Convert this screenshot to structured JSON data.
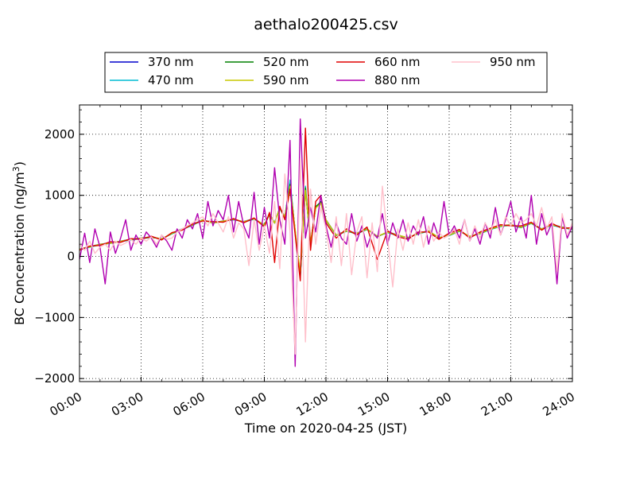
{
  "chart_data": {
    "type": "line",
    "title": "aethalo200425.csv",
    "xlabel": "Time on 2020-04-25 (JST)",
    "ylabel_main": "BC Concentration (ng/m",
    "ylabel_sup": "3",
    "ylabel_tail": ")",
    "x_unit": "hours of day (JST)",
    "xlim": [
      0,
      24
    ],
    "ylim": [
      -2050,
      2480
    ],
    "grid": true,
    "legend_position": "top-center (above plot)",
    "x_ticks": [
      {
        "value": 0,
        "label": "00:00"
      },
      {
        "value": 3,
        "label": "03:00"
      },
      {
        "value": 6,
        "label": "06:00"
      },
      {
        "value": 9,
        "label": "09:00"
      },
      {
        "value": 12,
        "label": "12:00"
      },
      {
        "value": 15,
        "label": "15:00"
      },
      {
        "value": 18,
        "label": "18:00"
      },
      {
        "value": 21,
        "label": "21:00"
      },
      {
        "value": 24,
        "label": "24:00"
      }
    ],
    "y_ticks": [
      {
        "value": 2000,
        "label": "2000"
      },
      {
        "value": 1000,
        "label": "1000"
      },
      {
        "value": 0,
        "label": "0"
      },
      {
        "value": -1000,
        "label": "−1000"
      },
      {
        "value": -2000,
        "label": "−2000"
      }
    ],
    "series": [
      {
        "name": "370 nm",
        "color": "#0000cc",
        "x": [
          0,
          0.5,
          1,
          1.5,
          2,
          2.5,
          3,
          3.5,
          4,
          4.5,
          5,
          5.5,
          6,
          6.5,
          7,
          7.5,
          8,
          8.5,
          9,
          9.25,
          9.5,
          9.75,
          10,
          10.25,
          10.5,
          10.75,
          11,
          11.25,
          11.5,
          11.75,
          12,
          12.5,
          13,
          13.5,
          14,
          14.5,
          15,
          15.5,
          16,
          16.5,
          17,
          17.5,
          18,
          18.5,
          19,
          19.5,
          20,
          20.5,
          21,
          21.5,
          22,
          22.5,
          23,
          23.5,
          24
        ],
        "values": [
          120,
          160,
          200,
          220,
          250,
          280,
          300,
          320,
          280,
          380,
          450,
          520,
          600,
          550,
          580,
          600,
          570,
          620,
          500,
          700,
          550,
          800,
          650,
          1200,
          400,
          -300,
          1100,
          200,
          800,
          900,
          600,
          350,
          420,
          380,
          450,
          320,
          400,
          350,
          300,
          380,
          420,
          300,
          350,
          420,
          320,
          380,
          450,
          500,
          520,
          480,
          550,
          450,
          520,
          480,
          450
        ]
      },
      {
        "name": "470 nm",
        "color": "#00bcd4",
        "x": [
          0,
          0.5,
          1,
          1.5,
          2,
          2.5,
          3,
          3.5,
          4,
          4.5,
          5,
          5.5,
          6,
          6.5,
          7,
          7.5,
          8,
          8.5,
          9,
          9.25,
          9.5,
          9.75,
          10,
          10.25,
          10.5,
          10.75,
          11,
          11.25,
          11.5,
          11.75,
          12,
          12.5,
          13,
          13.5,
          14,
          14.5,
          15,
          15.5,
          16,
          16.5,
          17,
          17.5,
          18,
          18.5,
          19,
          19.5,
          20,
          20.5,
          21,
          21.5,
          22,
          22.5,
          23,
          23.5,
          24
        ],
        "values": [
          110,
          150,
          190,
          230,
          240,
          270,
          290,
          310,
          290,
          370,
          440,
          510,
          590,
          560,
          570,
          610,
          560,
          610,
          520,
          680,
          560,
          780,
          640,
          1250,
          380,
          -350,
          1150,
          180,
          820,
          880,
          590,
          340,
          410,
          370,
          440,
          330,
          390,
          340,
          310,
          370,
          410,
          310,
          340,
          410,
          330,
          370,
          440,
          490,
          510,
          470,
          540,
          440,
          510,
          470,
          440
        ]
      },
      {
        "name": "520 nm",
        "color": "#008000",
        "x": [
          0,
          0.5,
          1,
          1.5,
          2,
          2.5,
          3,
          3.5,
          4,
          4.5,
          5,
          5.5,
          6,
          6.5,
          7,
          7.5,
          8,
          8.5,
          9,
          9.25,
          9.5,
          9.75,
          10,
          10.25,
          10.5,
          10.75,
          11,
          11.25,
          11.5,
          11.75,
          12,
          12.5,
          13,
          13.5,
          14,
          14.5,
          15,
          15.5,
          16,
          16.5,
          17,
          17.5,
          18,
          18.5,
          19,
          19.5,
          20,
          20.5,
          21,
          21.5,
          22,
          22.5,
          23,
          23.5,
          24
        ],
        "values": [
          115,
          155,
          195,
          215,
          245,
          275,
          295,
          315,
          285,
          375,
          445,
          515,
          595,
          545,
          575,
          605,
          565,
          615,
          510,
          690,
          545,
          790,
          645,
          1180,
          420,
          -320,
          1120,
          210,
          810,
          890,
          595,
          345,
          415,
          375,
          445,
          325,
          395,
          345,
          305,
          375,
          415,
          305,
          345,
          415,
          325,
          375,
          445,
          495,
          515,
          475,
          545,
          445,
          515,
          475,
          445
        ]
      },
      {
        "name": "590 nm",
        "color": "#c8c800",
        "x": [
          0,
          0.5,
          1,
          1.5,
          2,
          2.5,
          3,
          3.5,
          4,
          4.5,
          5,
          5.5,
          6,
          6.5,
          7,
          7.5,
          8,
          8.5,
          9,
          9.25,
          9.5,
          9.75,
          10,
          10.25,
          10.5,
          10.75,
          11,
          11.25,
          11.5,
          11.75,
          12,
          12.5,
          13,
          13.5,
          14,
          14.5,
          15,
          15.5,
          16,
          16.5,
          17,
          17.5,
          18,
          18.5,
          19,
          19.5,
          20,
          20.5,
          21,
          21.5,
          22,
          22.5,
          23,
          23.5,
          24
        ],
        "values": [
          118,
          158,
          198,
          218,
          248,
          278,
          298,
          318,
          288,
          378,
          448,
          518,
          598,
          548,
          578,
          608,
          568,
          618,
          515,
          695,
          548,
          795,
          648,
          1150,
          430,
          -280,
          1080,
          230,
          790,
          870,
          598,
          348,
          418,
          378,
          448,
          328,
          398,
          348,
          308,
          378,
          418,
          308,
          348,
          418,
          328,
          378,
          448,
          498,
          518,
          478,
          548,
          448,
          518,
          478,
          448
        ]
      },
      {
        "name": "660 nm",
        "color": "#e00000",
        "x": [
          0,
          0.5,
          1,
          1.5,
          2,
          2.5,
          3,
          3.5,
          4,
          4.5,
          5,
          5.5,
          6,
          6.5,
          7,
          7.5,
          8,
          8.5,
          9,
          9.25,
          9.5,
          9.75,
          10,
          10.25,
          10.5,
          10.75,
          11,
          11.25,
          11.5,
          11.75,
          12,
          12.5,
          13,
          13.5,
          14,
          14.5,
          15,
          15.5,
          16,
          16.5,
          17,
          17.5,
          18,
          18.5,
          19,
          19.5,
          20,
          20.5,
          21,
          21.5,
          22,
          22.5,
          23,
          23.5,
          24
        ],
        "values": [
          100,
          170,
          180,
          240,
          230,
          290,
          280,
          330,
          270,
          390,
          430,
          530,
          580,
          570,
          560,
          620,
          550,
          630,
          480,
          720,
          -100,
          820,
          600,
          1100,
          350,
          -400,
          2100,
          100,
          900,
          1000,
          550,
          300,
          450,
          350,
          480,
          -50,
          420,
          320,
          280,
          400,
          400,
          280,
          380,
          440,
          300,
          400,
          460,
          520,
          500,
          500,
          560,
          430,
          540,
          460,
          470
        ]
      },
      {
        "name": "880 nm",
        "color": "#b000b0",
        "x": [
          0,
          0.25,
          0.5,
          0.75,
          1,
          1.25,
          1.5,
          1.75,
          2,
          2.25,
          2.5,
          2.75,
          3,
          3.25,
          3.5,
          3.75,
          4,
          4.25,
          4.5,
          4.75,
          5,
          5.25,
          5.5,
          5.75,
          6,
          6.25,
          6.5,
          6.75,
          7,
          7.25,
          7.5,
          7.75,
          8,
          8.25,
          8.5,
          8.75,
          9,
          9.25,
          9.5,
          9.75,
          10,
          10.25,
          10.5,
          10.75,
          11,
          11.25,
          11.5,
          11.75,
          12,
          12.25,
          12.5,
          12.75,
          13,
          13.25,
          13.5,
          13.75,
          14,
          14.25,
          14.5,
          14.75,
          15,
          15.25,
          15.5,
          15.75,
          16,
          16.25,
          16.5,
          16.75,
          17,
          17.25,
          17.5,
          17.75,
          18,
          18.25,
          18.5,
          18.75,
          19,
          19.25,
          19.5,
          19.75,
          20,
          20.25,
          20.5,
          20.75,
          21,
          21.25,
          21.5,
          21.75,
          22,
          22.25,
          22.5,
          22.75,
          23,
          23.25,
          23.5,
          23.75,
          24
        ],
        "values": [
          -50,
          380,
          -100,
          450,
          150,
          -450,
          400,
          50,
          300,
          600,
          100,
          350,
          200,
          400,
          300,
          150,
          350,
          250,
          100,
          450,
          300,
          600,
          450,
          700,
          300,
          900,
          500,
          750,
          600,
          1000,
          400,
          900,
          500,
          300,
          1050,
          200,
          800,
          300,
          1450,
          600,
          200,
          1900,
          -1800,
          2250,
          300,
          800,
          400,
          1000,
          500,
          150,
          550,
          300,
          200,
          700,
          250,
          500,
          150,
          400,
          300,
          700,
          200,
          550,
          300,
          600,
          250,
          500,
          350,
          650,
          200,
          550,
          300,
          900,
          350,
          500,
          300,
          600,
          250,
          450,
          200,
          550,
          300,
          800,
          350,
          600,
          900,
          400,
          650,
          300,
          1000,
          200,
          700,
          350,
          550,
          -450,
          650,
          300,
          500
        ]
      },
      {
        "name": "950 nm",
        "color": "#ffc0cb",
        "x": [
          0,
          0.25,
          0.5,
          0.75,
          1,
          1.25,
          1.5,
          1.75,
          2,
          2.25,
          2.5,
          2.75,
          3,
          3.25,
          3.5,
          3.75,
          4,
          4.25,
          4.5,
          4.75,
          5,
          5.25,
          5.5,
          5.75,
          6,
          6.25,
          6.5,
          6.75,
          7,
          7.25,
          7.5,
          7.75,
          8,
          8.25,
          8.5,
          8.75,
          9,
          9.25,
          9.5,
          9.75,
          10,
          10.25,
          10.5,
          10.75,
          11,
          11.25,
          11.5,
          11.75,
          12,
          12.25,
          12.5,
          12.75,
          13,
          13.25,
          13.5,
          13.75,
          14,
          14.25,
          14.5,
          14.75,
          15,
          15.25,
          15.5,
          15.75,
          16,
          16.25,
          16.5,
          16.75,
          17,
          17.25,
          17.5,
          17.75,
          18,
          18.25,
          18.5,
          18.75,
          19,
          19.25,
          19.5,
          19.75,
          20,
          20.25,
          20.5,
          20.75,
          21,
          21.25,
          21.5,
          21.75,
          22,
          22.25,
          22.5,
          22.75,
          23,
          23.25,
          23.5,
          23.75,
          24
        ],
        "values": [
          200,
          100,
          250,
          50,
          150,
          200,
          100,
          250,
          180,
          220,
          280,
          200,
          300,
          250,
          320,
          200,
          350,
          280,
          300,
          400,
          450,
          500,
          550,
          600,
          650,
          500,
          700,
          550,
          400,
          650,
          300,
          550,
          450,
          -150,
          600,
          100,
          500,
          50,
          900,
          -200,
          1350,
          400,
          -1600,
          1600,
          -1400,
          1100,
          200,
          800,
          450,
          -100,
          650,
          -150,
          700,
          -300,
          400,
          650,
          -350,
          550,
          -250,
          1150,
          300,
          -500,
          450,
          100,
          550,
          200,
          600,
          150,
          500,
          250,
          400,
          300,
          350,
          450,
          200,
          600,
          250,
          500,
          300,
          550,
          400,
          600,
          350,
          650,
          500,
          700,
          550,
          600,
          700,
          500,
          800,
          450,
          650,
          -250,
          700,
          350,
          550
        ]
      }
    ]
  }
}
